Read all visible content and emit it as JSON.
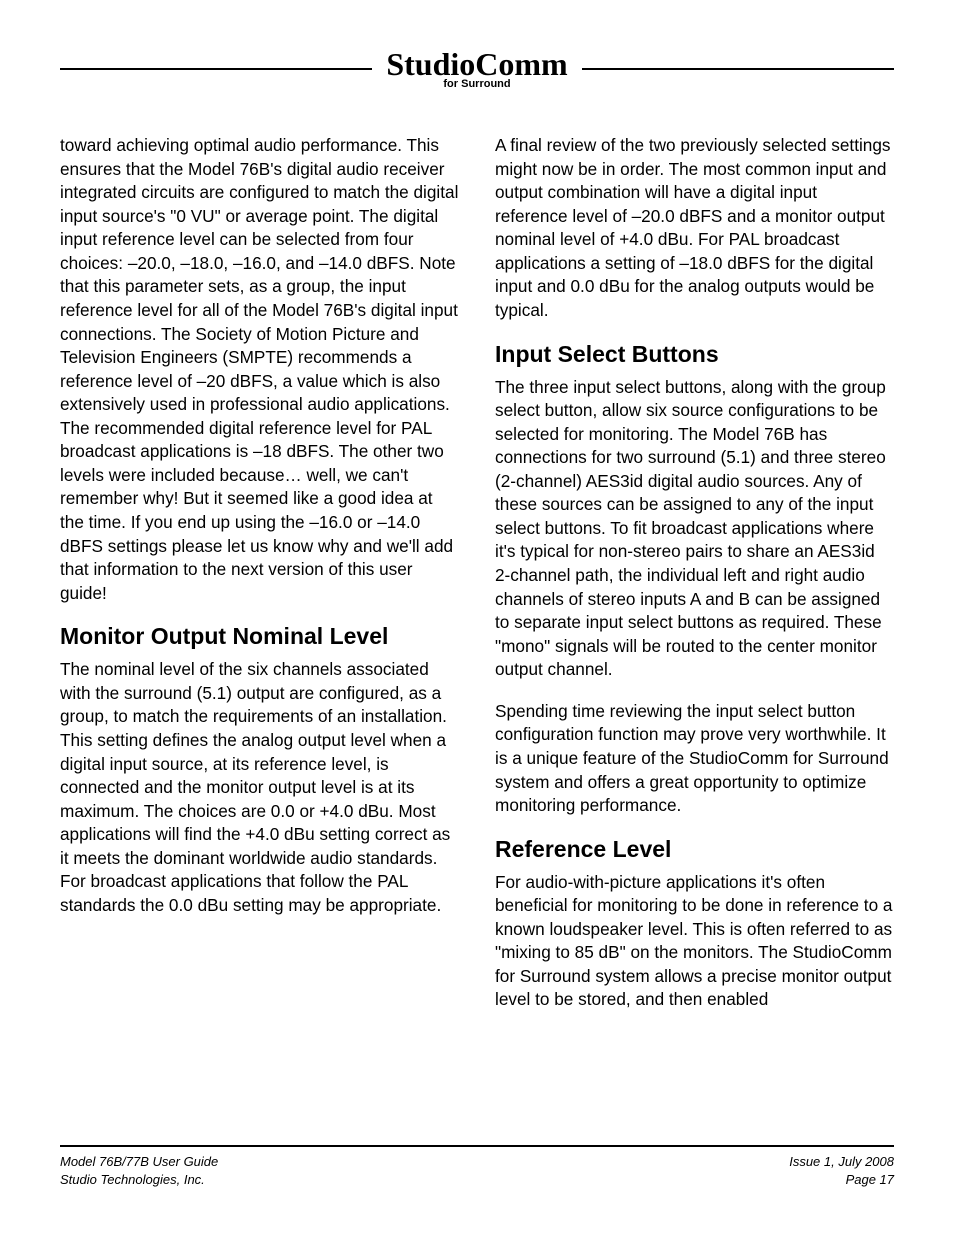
{
  "logo": {
    "script": "StudioComm",
    "sub": "for Surround"
  },
  "left_column": {
    "p1": "toward achieving optimal audio performance. This ensures that the Model 76B's digital audio receiver integrated circuits are configured to match the digital input source's \"0 VU\" or average point. The digital input reference level can be selected from four choices: –20.0, –18.0, –16.0, and –14.0 dBFS. Note that this parameter sets, as a group, the input reference level for all of the Model 76B's digital input connections. The Society of Motion Picture and Television Engineers (SMPTE) recommends a reference level of –20 dBFS, a value which is also extensively used in professional audio applications. The recommended digital reference level for PAL broadcast applications is –18 dBFS. The other two levels were included because… well, we can't remember why! But it seemed like a good idea at the time. If you end up using the –16.0 or –14.0 dBFS settings please let us know why and we'll add that information to the next version of this user guide!",
    "h_monitor": "Monitor Output Nominal Level",
    "p2": "The nominal level of the six channels associated with the surround (5.1) output are configured, as a group, to match the requirements of an installation. This setting defines the analog output level when a digital input source, at its reference level, is connected and the monitor output level is at its maximum. The choices are 0.0 or +4.0 dBu. Most applications will find the +4.0 dBu setting correct as it meets the dominant worldwide audio standards. For broadcast applications that follow the PAL standards the 0.0 dBu setting may be appropriate."
  },
  "right_column": {
    "p1": "A final review of the two previously selected settings might now be in order. The most common input and output combination will have a digital input reference level of –20.0 dBFS and a monitor output nominal level of +4.0 dBu. For PAL broadcast applications a setting of –18.0 dBFS for the digital input and 0.0 dBu for the analog outputs would be typical.",
    "h_input": "Input Select Buttons",
    "p2": "The three input select buttons, along with the group select button, allow six source configurations to be selected for monitoring. The Model 76B has connections for two surround (5.1) and three stereo (2-channel) AES3id digital audio sources. Any of these sources can be assigned to any of the input select buttons. To fit broadcast applications where it's typical for non-stereo pairs to share an AES3id 2-channel path, the individual left and right audio channels of stereo inputs A and B can be assigned to separate input select buttons as required. These \"mono\" signals will be routed to the center monitor output channel.",
    "p3": "Spending time reviewing the input select button configuration function may prove very worthwhile. It is a unique feature of the StudioComm for Surround system and offers a great opportunity to optimize monitoring performance.",
    "h_ref": "Reference Level",
    "p4": "For audio-with-picture applications it's often beneficial for monitoring to be done in reference to a known loudspeaker level. This is often referred to as \"mixing to 85 dB\" on the monitors. The StudioComm for Surround system allows a precise monitor output level to be stored, and then enabled"
  },
  "footer": {
    "left1": "Model 76B/77B User Guide",
    "left2": "Studio Technologies, Inc.",
    "right1": "Issue 1, July 2008",
    "right2": "Page 17"
  }
}
